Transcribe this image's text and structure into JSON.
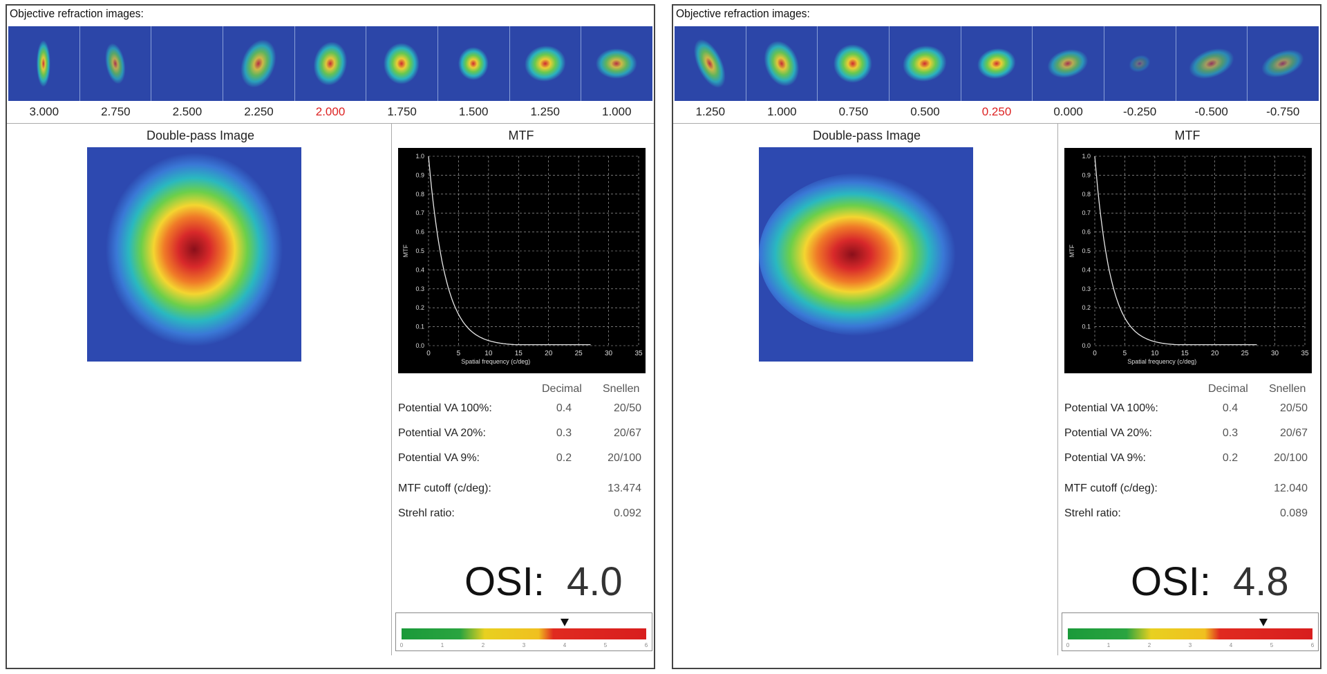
{
  "panels": [
    {
      "title": "Objective refraction images:",
      "dioptres": [
        "3.000",
        "2.750",
        "2.500",
        "2.250",
        "2.000",
        "1.750",
        "1.500",
        "1.250",
        "1.000"
      ],
      "selected_index": 4,
      "double_pass_title": "Double-pass Image",
      "mtf_title": "MTF",
      "table_headers": {
        "decimal": "Decimal",
        "snellen": "Snellen"
      },
      "va_rows": [
        {
          "label": "Potential VA 100%:",
          "decimal": "0.4",
          "snellen": "20/50"
        },
        {
          "label": "Potential VA 20%:",
          "decimal": "0.3",
          "snellen": "20/67"
        },
        {
          "label": "Potential VA 9%:",
          "decimal": "0.2",
          "snellen": "20/100"
        }
      ],
      "mtf_cutoff_label": "MTF cutoff (c/deg):",
      "mtf_cutoff_value": "13.474",
      "strehl_label": "Strehl ratio:",
      "strehl_value": "0.092",
      "osi_label": "OSI:",
      "osi_value": "4.0",
      "osi_level": 4.0
    },
    {
      "title": "Objective refraction images:",
      "dioptres": [
        "1.250",
        "1.000",
        "0.750",
        "0.500",
        "0.250",
        "0.000",
        "-0.250",
        "-0.500",
        "-0.750"
      ],
      "selected_index": 4,
      "double_pass_title": "Double-pass Image",
      "mtf_title": "MTF",
      "table_headers": {
        "decimal": "Decimal",
        "snellen": "Snellen"
      },
      "va_rows": [
        {
          "label": "Potential VA 100%:",
          "decimal": "0.4",
          "snellen": "20/50"
        },
        {
          "label": "Potential VA 20%:",
          "decimal": "0.3",
          "snellen": "20/67"
        },
        {
          "label": "Potential VA 9%:",
          "decimal": "0.2",
          "snellen": "20/100"
        }
      ],
      "mtf_cutoff_label": "MTF cutoff (c/deg):",
      "mtf_cutoff_value": "12.040",
      "strehl_label": "Strehl ratio:",
      "strehl_value": "0.089",
      "osi_label": "OSI:",
      "osi_value": "4.8",
      "osi_level": 4.8
    }
  ],
  "mtf_chart": {
    "y_ticks": [
      "1.0",
      "0.9",
      "0.8",
      "0.7",
      "0.6",
      "0.5",
      "0.4",
      "0.3",
      "0.2",
      "0.1",
      "0.0"
    ],
    "x_ticks": [
      "0",
      "5",
      "10",
      "15",
      "20",
      "25",
      "30",
      "35"
    ],
    "y_label": "MTF",
    "x_label": "Spatial frequency (c/deg)"
  },
  "osi_scale_ticks": [
    "0",
    "1",
    "2",
    "3",
    "4",
    "5",
    "6"
  ],
  "colors": {
    "selected_dioptre": "#d22222",
    "image_bg": "#2d49b0"
  }
}
